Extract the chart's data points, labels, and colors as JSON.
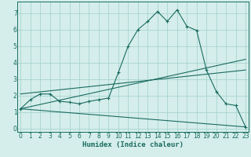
{
  "xlabel": "Humidex (Indice chaleur)",
  "bg_color": "#d5eeeb",
  "grid_color": "#a8d4cf",
  "line_color": "#1a6b60",
  "x_ticks": [
    0,
    1,
    2,
    3,
    4,
    5,
    6,
    7,
    8,
    9,
    10,
    11,
    12,
    13,
    14,
    15,
    16,
    17,
    18,
    19,
    20,
    21,
    22,
    23
  ],
  "y_ticks": [
    0,
    1,
    2,
    3,
    4,
    5,
    6,
    7
  ],
  "xlim": [
    -0.3,
    23.3
  ],
  "ylim": [
    -0.2,
    7.7
  ],
  "curve1_x": [
    0,
    1,
    2,
    3,
    4,
    5,
    6,
    7,
    8,
    9,
    10,
    11,
    12,
    13,
    14,
    15,
    16,
    17,
    18,
    19,
    20,
    21,
    22,
    23
  ],
  "curve1_y": [
    1.2,
    1.75,
    2.1,
    2.1,
    1.65,
    1.6,
    1.5,
    1.65,
    1.75,
    1.85,
    3.4,
    5.0,
    6.0,
    6.5,
    7.1,
    6.5,
    7.2,
    6.2,
    5.95,
    3.55,
    2.25,
    1.5,
    1.4,
    0.1
  ],
  "curve2_x": [
    0,
    23
  ],
  "curve2_y": [
    1.2,
    4.2
  ],
  "curve3_x": [
    0,
    23
  ],
  "curve3_y": [
    2.1,
    3.55
  ],
  "curve4_x": [
    0,
    23
  ],
  "curve4_y": [
    1.2,
    0.1
  ]
}
